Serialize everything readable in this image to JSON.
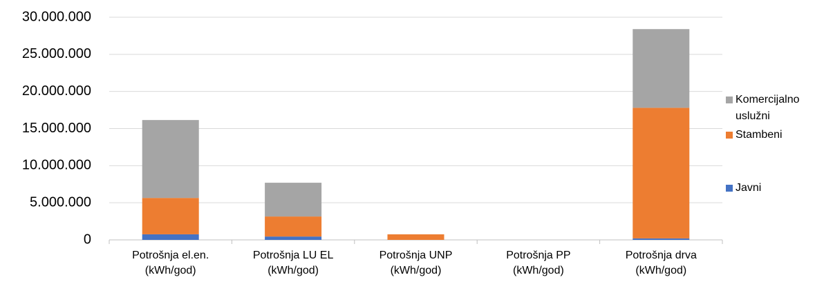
{
  "chart_data": {
    "type": "stacked_bar",
    "categories": [
      "Potrošnja el.en. (kWh/god)",
      "Potrošnja LU EL (kWh/god)",
      "Potrošnja UNP (kWh/god)",
      "Potrošnja PP (kWh/god)",
      "Potrošnja drva (kWh/god)"
    ],
    "series": [
      {
        "name": "Javni",
        "color": "#4472c4",
        "values": [
          750000,
          450000,
          0,
          0,
          200000
        ]
      },
      {
        "name": "Stambeni",
        "color": "#ed7d31",
        "values": [
          4900000,
          2700000,
          750000,
          0,
          17600000
        ]
      },
      {
        "name": "Komercijalno uslužni",
        "color": "#a5a5a5",
        "values": [
          10500000,
          4550000,
          0,
          0,
          10600000
        ]
      }
    ],
    "ylim": [
      0,
      30000000
    ],
    "yticks": [
      0,
      {
        "value": 5000000,
        "label": "5.000.000"
      },
      {
        "value": 10000000,
        "label": "10.000.000"
      },
      {
        "value": 15000000,
        "label": "15.000.000"
      },
      {
        "value": 20000000,
        "label": "20.000.000"
      },
      {
        "value": 25000000,
        "label": "25.000.000"
      },
      {
        "value": 30000000,
        "label": "30.000.000"
      }
    ],
    "grid": true,
    "legend": "right"
  }
}
